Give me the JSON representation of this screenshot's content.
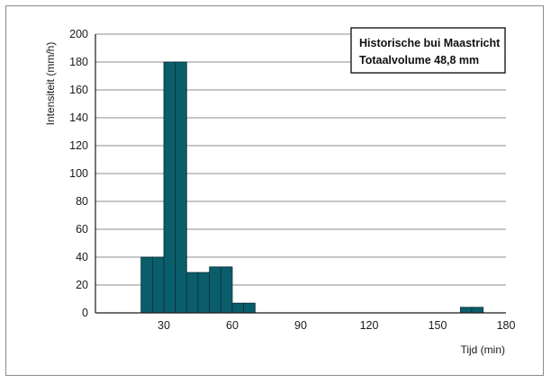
{
  "chart_data": {
    "type": "bar",
    "title_lines": [
      "Historische bui Maastricht",
      "Totaalvolume 48,8 mm"
    ],
    "xlabel": "Tijd (min)",
    "ylabel": "Intensiteit (mm/h)",
    "xlim": [
      0,
      180
    ],
    "ylim": [
      0,
      200
    ],
    "xticks": [
      30,
      60,
      90,
      120,
      150,
      180
    ],
    "yticks": [
      0,
      20,
      40,
      60,
      80,
      100,
      120,
      140,
      160,
      180,
      200
    ],
    "grid": "horizontal",
    "legend_position": "top-right",
    "bar_width": 5,
    "bars": [
      {
        "x": 20,
        "value": 40
      },
      {
        "x": 25,
        "value": 40
      },
      {
        "x": 30,
        "value": 180
      },
      {
        "x": 35,
        "value": 180
      },
      {
        "x": 40,
        "value": 29
      },
      {
        "x": 45,
        "value": 29
      },
      {
        "x": 50,
        "value": 33
      },
      {
        "x": 55,
        "value": 33
      },
      {
        "x": 60,
        "value": 7
      },
      {
        "x": 65,
        "value": 7
      },
      {
        "x": 160,
        "value": 4
      },
      {
        "x": 165,
        "value": 4
      }
    ],
    "colors": {
      "bar": "#0a5d6b",
      "bar_edge": "#0b2f36"
    }
  }
}
